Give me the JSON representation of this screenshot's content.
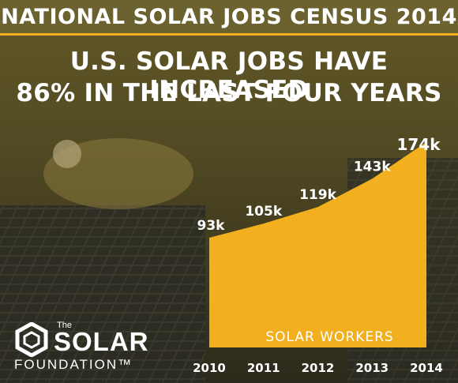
{
  "header": {
    "title": "NATIONAL SOLAR JOBS CENSUS 2014"
  },
  "headline": {
    "line1": "U.S. SOLAR JOBS HAVE INCREASED",
    "line2": "86% IN THE LAST FOUR YEARS"
  },
  "logo": {
    "the": "The",
    "solar": "SOLAR",
    "foundation": "FOUNDATION™"
  },
  "colors": {
    "accent": "#f2b01e",
    "header_bg": "#6b6230",
    "text": "#ffffff"
  },
  "chart_data": {
    "type": "area",
    "x": [
      "2010",
      "2011",
      "2012",
      "2013",
      "2014"
    ],
    "values": [
      93,
      105,
      119,
      143,
      174
    ],
    "data_labels": [
      "93k",
      "105k",
      "119k",
      "143k",
      "174k"
    ],
    "series_label": "SOLAR WORKERS",
    "ylim": [
      0,
      174
    ],
    "grid": false
  }
}
